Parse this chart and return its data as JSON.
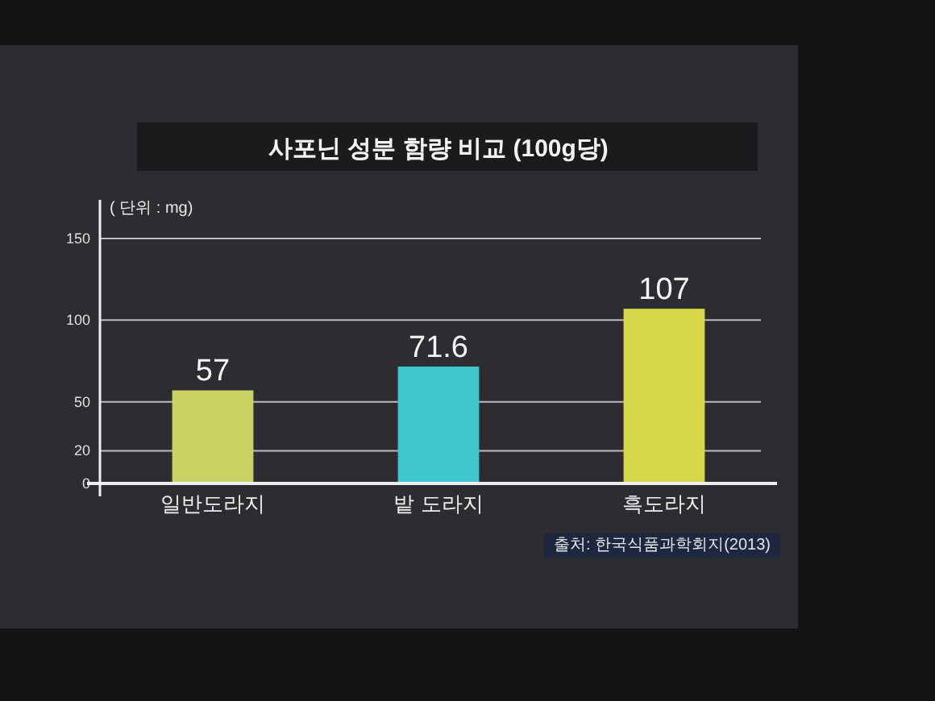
{
  "chart_data": {
    "type": "bar",
    "title": "사포닌 성분 함량 비교 (100g당)",
    "ylabel": "( 단위 : mg)",
    "categories": [
      "일반도라지",
      "밭 도라지",
      "흑도라지"
    ],
    "values": [
      57,
      71.6,
      107
    ],
    "colors": [
      "#c9d163",
      "#3fc6cf",
      "#d6d64a"
    ],
    "ylim": [
      0,
      150
    ],
    "yticks": [
      0,
      20,
      50,
      100,
      150
    ],
    "grid": "y",
    "data_labels": true,
    "annotations": [
      "출처: 한국식품과학회지(2013)"
    ]
  }
}
